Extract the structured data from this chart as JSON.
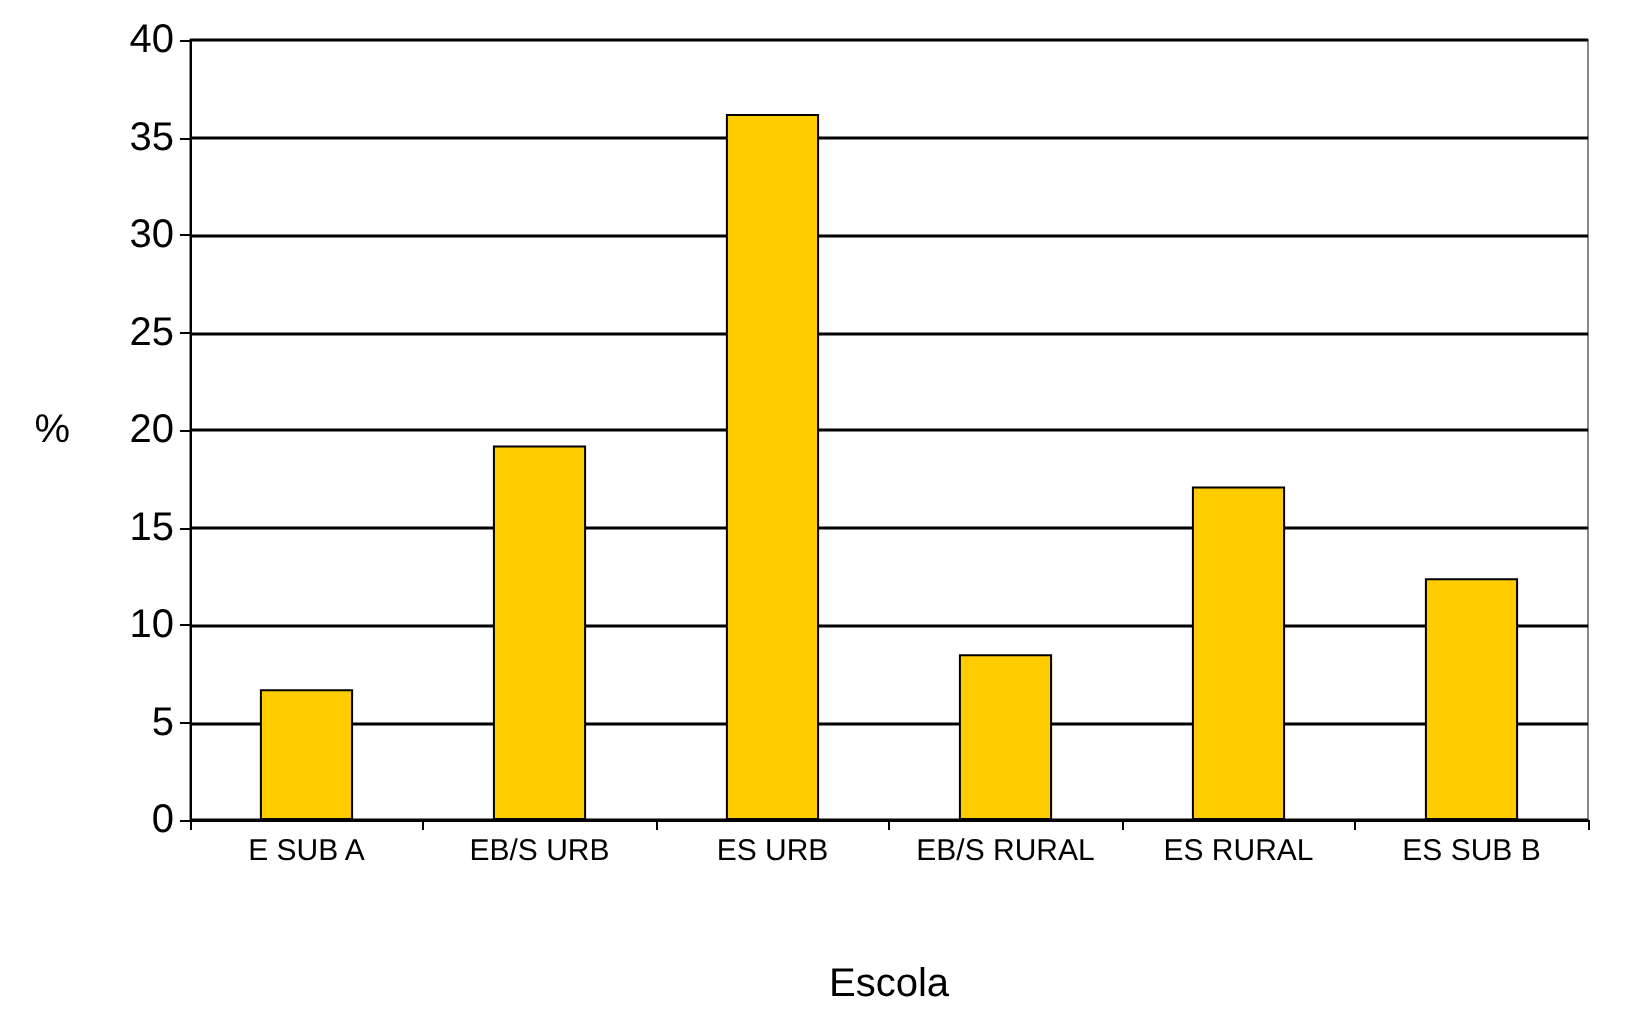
{
  "chart_data": {
    "type": "bar",
    "xlabel": "Escola",
    "ylabel": "%",
    "categories": [
      "E SUB A",
      "EB/S URB",
      "ES URB",
      "EB/S RURAL",
      "ES RURAL",
      "ES SUB B"
    ],
    "values": [
      6.7,
      19.2,
      36.2,
      8.5,
      17.1,
      12.4
    ],
    "color": "#ffcc00",
    "ylim": [
      0,
      40
    ],
    "yticks": [
      0,
      5,
      10,
      15,
      20,
      25,
      30,
      35,
      40
    ],
    "grid": "y"
  }
}
